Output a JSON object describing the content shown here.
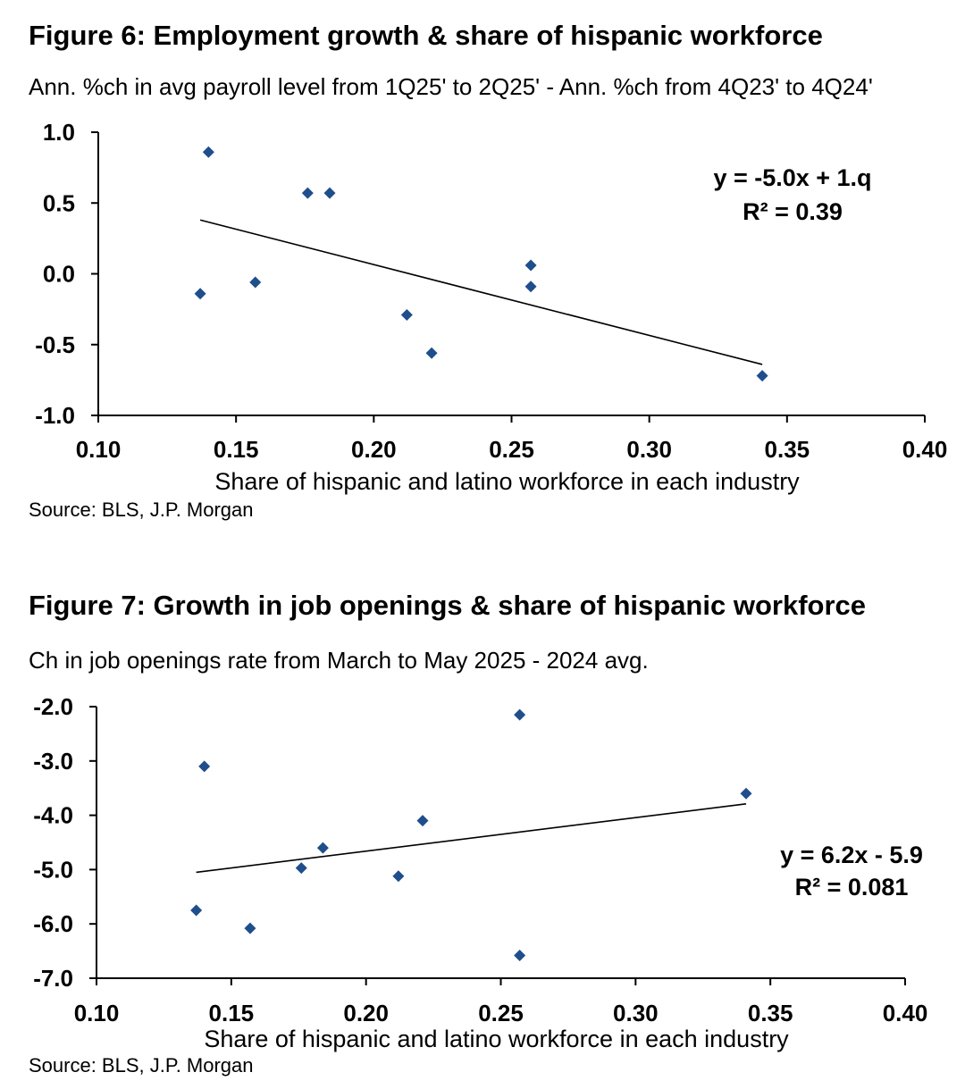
{
  "chart_data": [
    {
      "type": "scatter",
      "title": "Figure 6: Employment growth & share of hispanic workforce",
      "subtitle": "Ann. %ch in avg payroll level from 1Q25' to 2Q25' - Ann. %ch from 4Q23' to 4Q24'",
      "xlabel": "Share of hispanic and latino workforce in each industry",
      "ylabel": "",
      "source": "Source: BLS, J.P. Morgan",
      "xlim": [
        0.1,
        0.4
      ],
      "ylim": [
        -1.0,
        1.0
      ],
      "x_ticks": [
        "0.10",
        "0.15",
        "0.20",
        "0.25",
        "0.30",
        "0.35",
        "0.40"
      ],
      "y_ticks": [
        "1.0",
        "0.5",
        "0.0",
        "-0.5",
        "-1.0"
      ],
      "points": [
        {
          "x": 0.14,
          "y": 0.86
        },
        {
          "x": 0.137,
          "y": -0.14
        },
        {
          "x": 0.157,
          "y": -0.06
        },
        {
          "x": 0.176,
          "y": 0.57
        },
        {
          "x": 0.184,
          "y": 0.57
        },
        {
          "x": 0.212,
          "y": -0.29
        },
        {
          "x": 0.221,
          "y": -0.56
        },
        {
          "x": 0.257,
          "y": 0.06
        },
        {
          "x": 0.257,
          "y": -0.09
        },
        {
          "x": 0.341,
          "y": -0.72
        }
      ],
      "trendline": {
        "x": [
          0.137,
          0.341
        ],
        "y": [
          0.38,
          -0.64
        ]
      },
      "equation": "y = -5.0x + 1.q",
      "r_squared": "R² = 0.39",
      "grid": false,
      "marker_color": "#1f4e8c"
    },
    {
      "type": "scatter",
      "title": "Figure 7: Growth in job openings & share of hispanic workforce",
      "subtitle": "Ch in job openings rate from March to May 2025 - 2024 avg.",
      "xlabel": "Share of hispanic and latino workforce in each industry",
      "ylabel": "",
      "source": "Source: BLS, J.P. Morgan",
      "xlim": [
        0.1,
        0.4
      ],
      "ylim": [
        -7.0,
        -2.0
      ],
      "x_ticks": [
        "0.10",
        "0.15",
        "0.20",
        "0.25",
        "0.30",
        "0.35",
        "0.40"
      ],
      "y_ticks": [
        "-2.0",
        "-3.0",
        "-4.0",
        "-5.0",
        "-6.0",
        "-7.0"
      ],
      "points": [
        {
          "x": 0.14,
          "y": -3.1
        },
        {
          "x": 0.137,
          "y": -5.75
        },
        {
          "x": 0.157,
          "y": -6.08
        },
        {
          "x": 0.176,
          "y": -4.97
        },
        {
          "x": 0.184,
          "y": -4.6
        },
        {
          "x": 0.212,
          "y": -5.12
        },
        {
          "x": 0.221,
          "y": -4.1
        },
        {
          "x": 0.257,
          "y": -2.15
        },
        {
          "x": 0.257,
          "y": -6.58
        },
        {
          "x": 0.341,
          "y": -3.6
        }
      ],
      "trendline": {
        "x": [
          0.137,
          0.341
        ],
        "y": [
          -5.05,
          -3.79
        ]
      },
      "equation": "y = 6.2x - 5.9",
      "r_squared": "R² = 0.081",
      "grid": false,
      "marker_color": "#1f4e8c"
    }
  ]
}
